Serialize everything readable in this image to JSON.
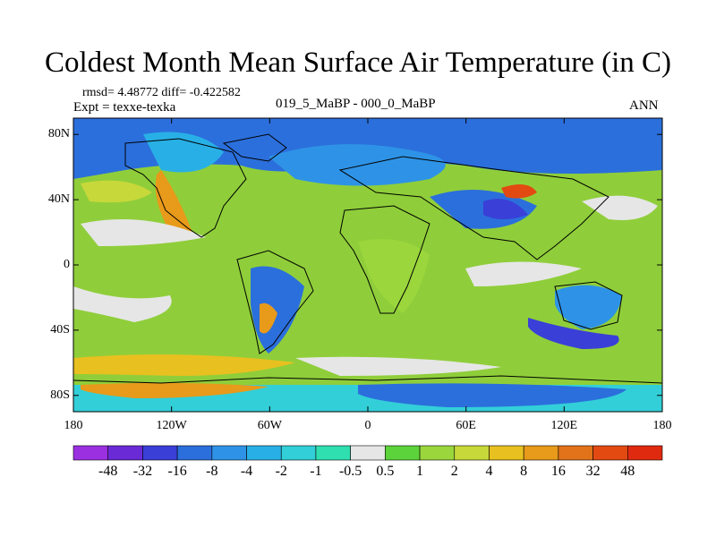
{
  "title": "Coldest Month Mean Surface Air Temperature (in C)",
  "stats": {
    "rmsd_diff": "rmsd= 4.48772 diff= -0.422582"
  },
  "experiment": "Expt = texxe-texka",
  "case_label": "019_5_MaBP - 000_0_MaBP",
  "season": "ANN",
  "map": {
    "lon_range": [
      -180,
      180
    ],
    "lat_range": [
      -90,
      90
    ],
    "lat_ticks": [
      {
        "value": 80,
        "label": "80N"
      },
      {
        "value": 40,
        "label": "40N"
      },
      {
        "value": 0,
        "label": "0"
      },
      {
        "value": -40,
        "label": "40S"
      },
      {
        "value": -80,
        "label": "80S"
      }
    ],
    "lon_ticks": [
      {
        "value": -180,
        "label": "180"
      },
      {
        "value": -120,
        "label": "120W"
      },
      {
        "value": -60,
        "label": "60W"
      },
      {
        "value": 0,
        "label": "0"
      },
      {
        "value": 60,
        "label": "60E"
      },
      {
        "value": 120,
        "label": "120E"
      },
      {
        "value": 180,
        "label": "180"
      }
    ],
    "base_color": "#8fce3a"
  },
  "colorbar": {
    "labels": [
      "-48",
      "-32",
      "-16",
      "-8",
      "-4",
      "-2",
      "-1",
      "-0.5",
      "0.5",
      "1",
      "2",
      "4",
      "8",
      "16",
      "32",
      "48"
    ],
    "colors": [
      "#9b30e0",
      "#6a2ad6",
      "#3a3fd8",
      "#2b6fdc",
      "#2e93e6",
      "#28b0e6",
      "#32cfd8",
      "#2fdfb0",
      "#e6e6e6",
      "#5cd33a",
      "#9ad63c",
      "#c7d83a",
      "#e8c020",
      "#e89a1a",
      "#e2731a",
      "#e24a12",
      "#e02a10"
    ]
  }
}
